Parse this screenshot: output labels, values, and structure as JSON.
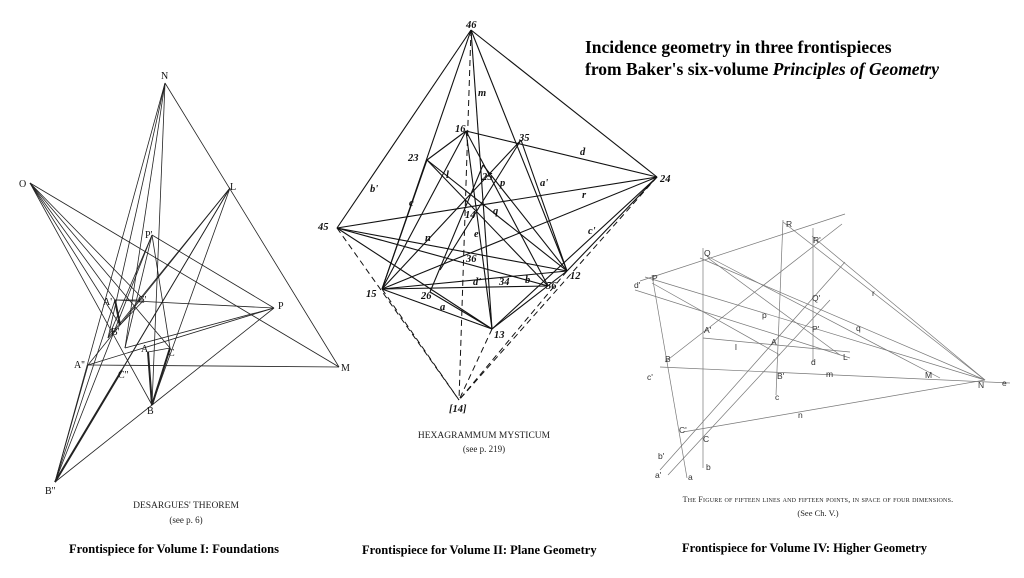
{
  "title": {
    "line1": "Incidence geometry in three frontispieces",
    "line2_prefix": "from Baker's six-volume ",
    "line2_italic": "Principles of Geometry"
  },
  "figures": [
    {
      "caption": "Frontispiece for Volume I: Foundations",
      "inner_title": "DESARGUES' THEOREM",
      "inner_ref": "(see p. 6)",
      "labels": [
        "O",
        "N",
        "L",
        "P'",
        "P",
        "A'",
        "C'",
        "B'",
        "A",
        "C",
        "A''",
        "C''",
        "B",
        "M",
        "B''"
      ]
    },
    {
      "caption": "Frontispiece for Volume II: Plane Geometry",
      "inner_title": "HEXAGRAMMUM MYSTICUM",
      "inner_ref": "(see p. 219)",
      "labels": [
        "46",
        "m",
        "16",
        "35",
        "d",
        "23",
        "l",
        "25",
        "p",
        "a'",
        "r",
        "24",
        "b'",
        "c",
        "q",
        "14",
        "e",
        "c'",
        "45",
        "n",
        "36",
        "12",
        "15",
        "26",
        "d'",
        "34",
        "b",
        "56",
        "a",
        "13",
        "[14]"
      ]
    },
    {
      "caption": "Frontispiece for Volume IV: Higher Geometry",
      "inner_title": "The Figure of fifteen lines and fifteen points, in space of four dimensions.",
      "inner_ref": "(See Ch. V.)",
      "labels": [
        "R",
        "R'",
        "Q",
        "P",
        "d'",
        "r",
        "Q'",
        "p",
        "P'",
        "q",
        "A'",
        "A",
        "l",
        "L",
        "B",
        "B'",
        "d",
        "M",
        "N",
        "e",
        "c'",
        "c",
        "m",
        "C'",
        "C",
        "n",
        "b'",
        "a'",
        "a",
        "b"
      ]
    }
  ]
}
